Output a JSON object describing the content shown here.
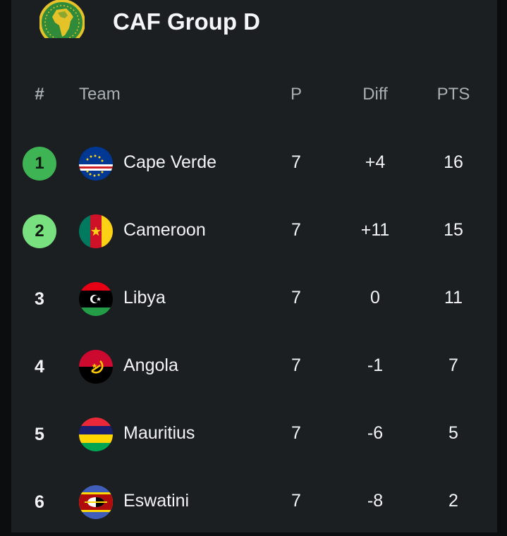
{
  "header": {
    "title": "CAF Group D",
    "logo_icon": "caf-africa-logo"
  },
  "columns": {
    "position": "#",
    "team": "Team",
    "played": "P",
    "diff": "Diff",
    "points": "PTS"
  },
  "colors": {
    "qualify_badge_1": "#3fb455",
    "qualify_badge_2": "#78e07e",
    "background": "#1b1f22",
    "header_text": "#a9b0b5"
  },
  "rows": [
    {
      "pos": "1",
      "team": "Cape Verde",
      "p": "7",
      "diff": "+4",
      "pts": "16",
      "flag_icon": "cape-verde-flag-icon"
    },
    {
      "pos": "2",
      "team": "Cameroon",
      "p": "7",
      "diff": "+11",
      "pts": "15",
      "flag_icon": "cameroon-flag-icon"
    },
    {
      "pos": "3",
      "team": "Libya",
      "p": "7",
      "diff": "0",
      "pts": "11",
      "flag_icon": "libya-flag-icon"
    },
    {
      "pos": "4",
      "team": "Angola",
      "p": "7",
      "diff": "-1",
      "pts": "7",
      "flag_icon": "angola-flag-icon"
    },
    {
      "pos": "5",
      "team": "Mauritius",
      "p": "7",
      "diff": "-6",
      "pts": "5",
      "flag_icon": "mauritius-flag-icon"
    },
    {
      "pos": "6",
      "team": "Eswatini",
      "p": "7",
      "diff": "-8",
      "pts": "2",
      "flag_icon": "eswatini-flag-icon"
    }
  ]
}
